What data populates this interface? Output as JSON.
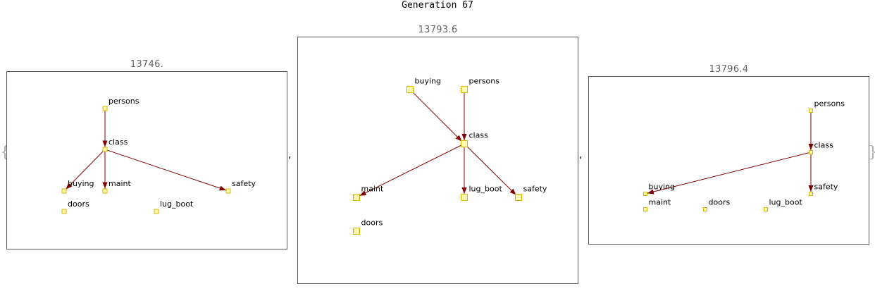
{
  "title": "Generation 67",
  "open_brace": "{",
  "close_brace": "}",
  "separator": ",",
  "node_style": {
    "fill": "#fff9b0",
    "stroke": "#d9b800"
  },
  "edge_color": "#800000",
  "graphs": [
    {
      "score": "13746.",
      "nodes": [
        {
          "id": "persons",
          "label": "persons"
        },
        {
          "id": "class",
          "label": "class"
        },
        {
          "id": "buying",
          "label": "buying"
        },
        {
          "id": "maint",
          "label": "maint"
        },
        {
          "id": "safety",
          "label": "safety"
        },
        {
          "id": "doors",
          "label": "doors"
        },
        {
          "id": "lug_boot",
          "label": "lug_boot"
        }
      ],
      "edges": [
        {
          "from": "persons",
          "to": "class"
        },
        {
          "from": "class",
          "to": "buying"
        },
        {
          "from": "class",
          "to": "maint"
        },
        {
          "from": "class",
          "to": "safety"
        }
      ]
    },
    {
      "score": "13793.6",
      "nodes": [
        {
          "id": "buying",
          "label": "buying"
        },
        {
          "id": "persons",
          "label": "persons"
        },
        {
          "id": "class",
          "label": "class"
        },
        {
          "id": "maint",
          "label": "maint"
        },
        {
          "id": "lug_boot",
          "label": "lug_boot"
        },
        {
          "id": "safety",
          "label": "safety"
        },
        {
          "id": "doors",
          "label": "doors"
        }
      ],
      "edges": [
        {
          "from": "buying",
          "to": "class"
        },
        {
          "from": "persons",
          "to": "class"
        },
        {
          "from": "class",
          "to": "maint"
        },
        {
          "from": "class",
          "to": "lug_boot"
        },
        {
          "from": "class",
          "to": "safety"
        }
      ]
    },
    {
      "score": "13796.4",
      "nodes": [
        {
          "id": "persons",
          "label": "persons"
        },
        {
          "id": "class",
          "label": "class"
        },
        {
          "id": "buying",
          "label": "buying"
        },
        {
          "id": "safety",
          "label": "safety"
        },
        {
          "id": "maint",
          "label": "maint"
        },
        {
          "id": "doors",
          "label": "doors"
        },
        {
          "id": "lug_boot",
          "label": "lug_boot"
        }
      ],
      "edges": [
        {
          "from": "persons",
          "to": "class"
        },
        {
          "from": "class",
          "to": "buying"
        },
        {
          "from": "class",
          "to": "safety"
        }
      ]
    }
  ]
}
